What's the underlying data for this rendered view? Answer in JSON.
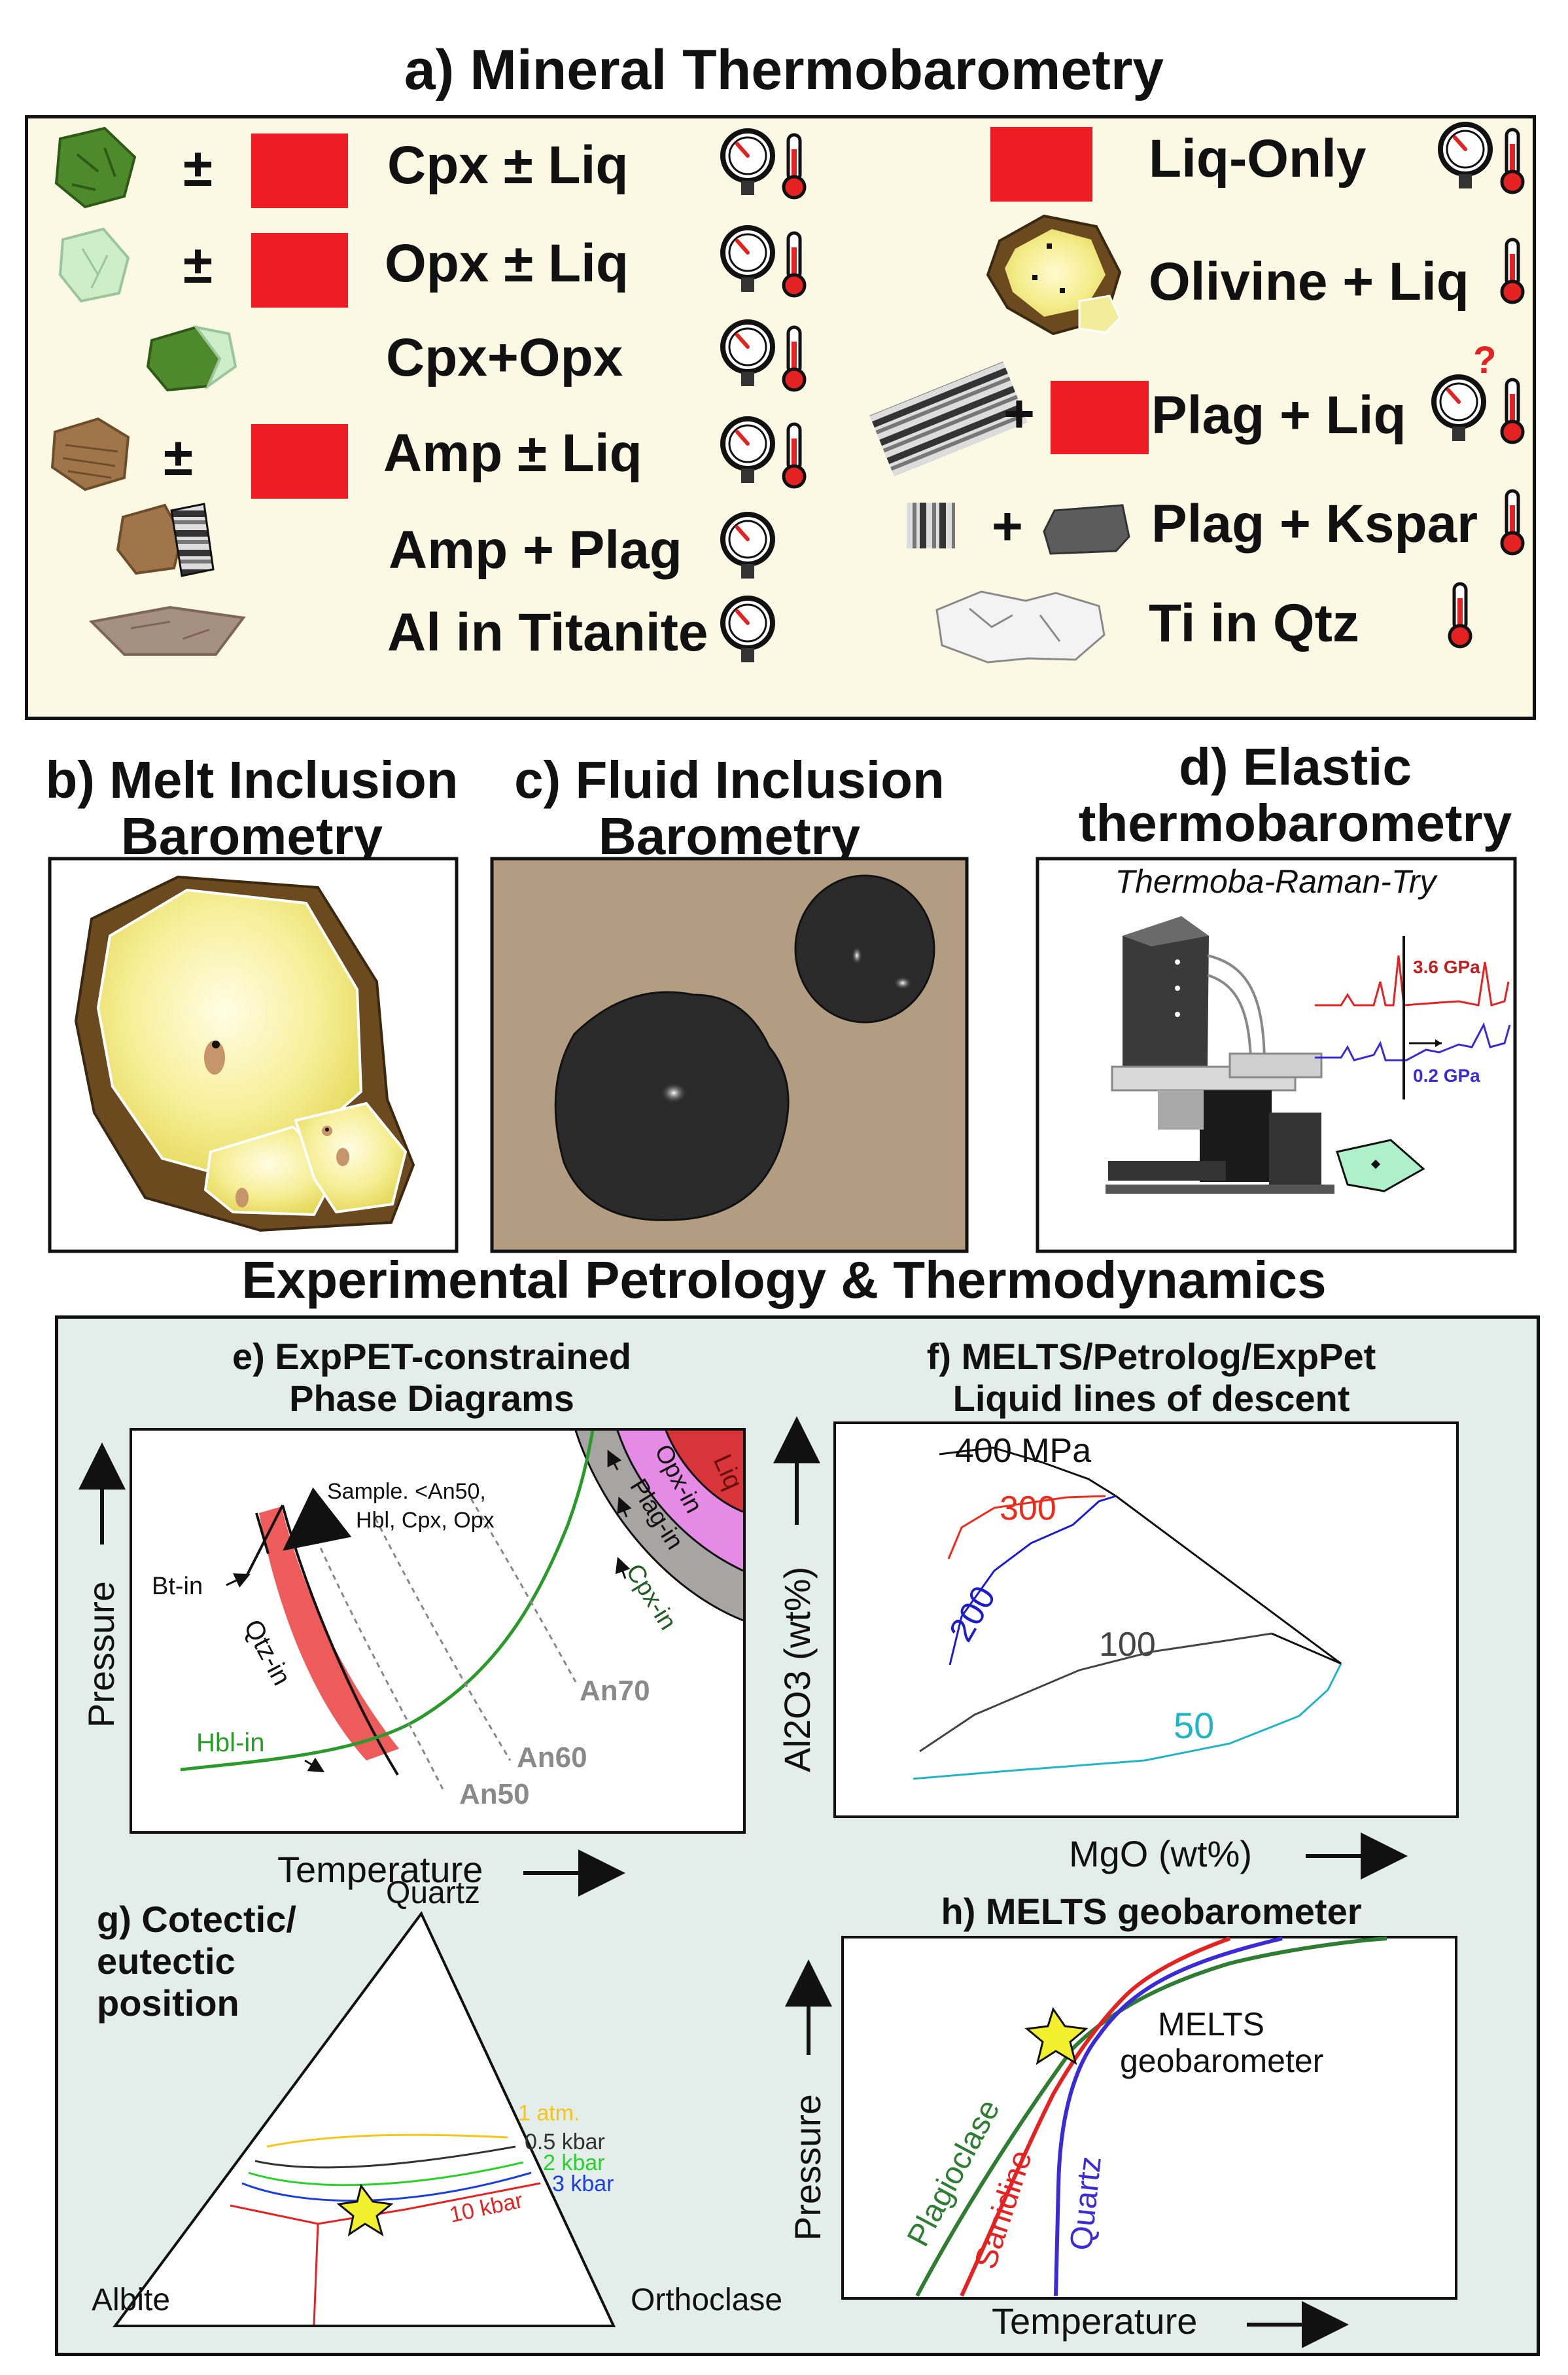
{
  "section_a": {
    "title": "a) Mineral Thermobarometry",
    "plus_minus": "±",
    "plus": "+",
    "question_mark": "?",
    "rows_left": [
      {
        "label": "Cpx ± Liq",
        "icons": [
          "pressure-gauge",
          "thermometer"
        ]
      },
      {
        "label": "Opx ± Liq",
        "icons": [
          "pressure-gauge",
          "thermometer"
        ]
      },
      {
        "label": "Cpx+Opx",
        "icons": [
          "pressure-gauge",
          "thermometer"
        ]
      },
      {
        "label": "Amp ± Liq",
        "icons": [
          "pressure-gauge",
          "thermometer"
        ]
      },
      {
        "label": "Amp + Plag",
        "icons": [
          "pressure-gauge"
        ]
      },
      {
        "label": "Al in Titanite",
        "icons": [
          "pressure-gauge"
        ]
      }
    ],
    "rows_right": [
      {
        "label": "Liq-Only",
        "icons": [
          "pressure-gauge",
          "thermometer"
        ]
      },
      {
        "label": "Olivine + Liq",
        "icons": [
          "thermometer"
        ]
      },
      {
        "label": "Plag + Liq",
        "icons": [
          "pressure-gauge-question",
          "thermometer"
        ]
      },
      {
        "label": "Plag + Kspar",
        "icons": [
          "thermometer"
        ]
      },
      {
        "label": "Ti in Qtz",
        "icons": [
          "thermometer"
        ]
      }
    ],
    "colors": {
      "panel_bg": "#fbf8e3",
      "liquid_red": "#ee1c24",
      "cpx_green": "#4e8a2c",
      "opx_green": "#cdeec8",
      "amp_brown": "#a0754a",
      "titanite": "#a69080"
    }
  },
  "section_b": {
    "title_line1": "b) Melt Inclusion",
    "title_line2": "Barometry"
  },
  "section_c": {
    "title_line1": "c) Fluid Inclusion",
    "title_line2": "Barometry"
  },
  "section_d": {
    "title_line1": "d) Elastic",
    "title_line2": "thermobarometry",
    "subtitle": "Thermoba-Raman-Try",
    "spectrum_high": "3.6 GPa",
    "spectrum_low": "0.2 GPa"
  },
  "section_exp": {
    "title": "Experimental Petrology & Thermodynamics",
    "panel_bg": "#e3eeeb"
  },
  "panel_e": {
    "title_line1": "e) ExpPET-constrained",
    "title_line2": "Phase Diagrams",
    "xlabel": "Temperature",
    "ylabel": "Pressure",
    "labels": {
      "liq": "Liq",
      "opx_in": "Opx-in",
      "plag_in": "Plag-in",
      "cpx_in": "Cpx-in",
      "bt_in": "Bt-in",
      "qtz_in": "Qtz-in",
      "hbl_in": "Hbl-in",
      "sample_line1": "Sample. <An50,",
      "sample_line2": "Hbl, Cpx, Opx",
      "an70": "An70",
      "an60": "An60",
      "an50": "An50"
    }
  },
  "panel_f": {
    "title_line1": "f) MELTS/Petrolog/ExpPet",
    "title_line2": "Liquid lines of descent",
    "xlabel": "MgO (wt%)",
    "ylabel": "Al2O3 (wt%)",
    "series": [
      {
        "name": "400 MPa",
        "color": "#000000"
      },
      {
        "name": "300",
        "color": "#ee2a1b"
      },
      {
        "name": "200",
        "color": "#1c1ccf"
      },
      {
        "name": "100",
        "color": "#444444"
      },
      {
        "name": "50",
        "color": "#1fb5c5"
      }
    ]
  },
  "panel_g": {
    "title_line1": "g) Cotectic/",
    "title_line2": "eutectic",
    "title_line3": "position",
    "apex_top": "Quartz",
    "apex_left": "Albite",
    "apex_right": "Orthoclase",
    "isobars": [
      {
        "name": "1 atm.",
        "color": "#f5c518"
      },
      {
        "name": "0.5 kbar",
        "color": "#333333"
      },
      {
        "name": "2 kbar",
        "color": "#2bd12b"
      },
      {
        "name": "3 kbar",
        "color": "#1c3ee0"
      },
      {
        "name": "10 kbar",
        "color": "#e52222"
      }
    ]
  },
  "panel_h": {
    "title": "h) MELTS geobarometer",
    "xlabel": "Temperature",
    "ylabel": "Pressure",
    "center_line1": "MELTS",
    "center_line2": "geobarometer",
    "curves": [
      {
        "name": "Plagioclase",
        "color": "#2e7d32"
      },
      {
        "name": "Sanidine",
        "color": "#e52222"
      },
      {
        "name": "Quartz",
        "color": "#3a2bd6"
      }
    ]
  }
}
